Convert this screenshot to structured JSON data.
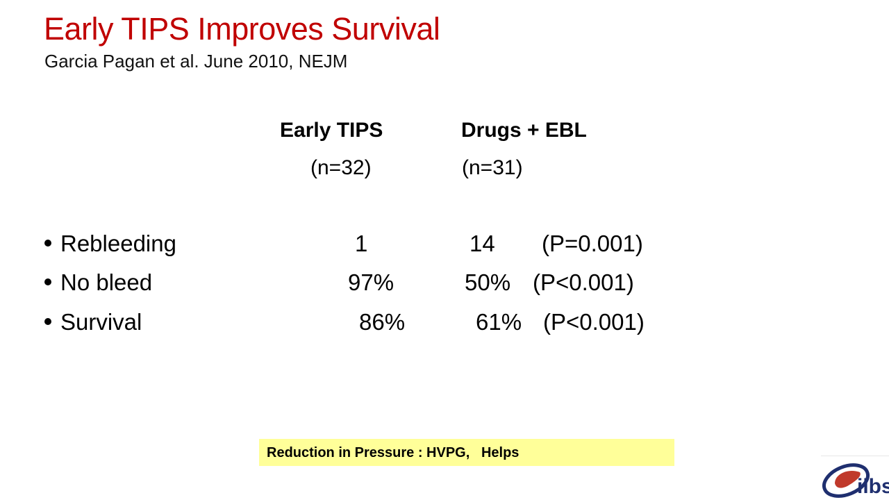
{
  "slide": {
    "title": "Early TIPS Improves Survival",
    "subtitle": "Garcia Pagan et al.  June 2010, NEJM"
  },
  "table": {
    "columns": [
      {
        "heading": "Early TIPS",
        "n": "(n=32)"
      },
      {
        "heading": "Drugs + EBL",
        "n": "(n=31)"
      }
    ],
    "rows": [
      {
        "label": "Rebleeding",
        "early_tips": "1",
        "drugs_ebl": "14",
        "p_value": "(P=0.001)"
      },
      {
        "label": "No bleed",
        "early_tips": "97%",
        "drugs_ebl": "50%",
        "p_value": "(P<0.001)"
      },
      {
        "label": "Survival",
        "early_tips": "86%",
        "drugs_ebl": "61%",
        "p_value": "(P<0.001)"
      }
    ]
  },
  "note": {
    "text": "Reduction in Pressure : HVPG,   Helps"
  },
  "logo": {
    "text": "ilbs",
    "icon": "liver-icon"
  },
  "colors": {
    "title": "#c00000",
    "note_highlight": "#ffff99",
    "logo_blue": "#1f2f6f",
    "logo_red": "#c0392b"
  }
}
